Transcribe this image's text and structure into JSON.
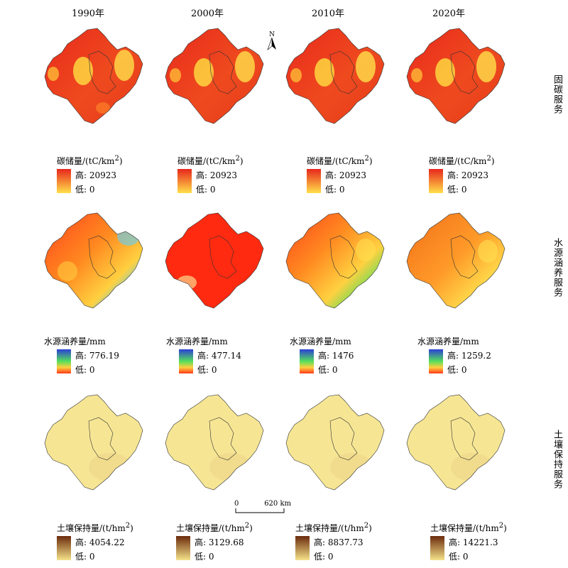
{
  "years": [
    "1990年",
    "2000年",
    "2010年",
    "2020年"
  ],
  "row_labels": [
    "固碳服务",
    "水源涵养服务",
    "土壤保持服务"
  ],
  "north_label": "N",
  "scale_bar": {
    "start": "0",
    "end": "620 km"
  },
  "colors": {
    "carbon": {
      "high": "#e8261c",
      "low": "#ffe04a"
    },
    "water": {
      "high": "#2a3fd6",
      "mid": "#55e05a",
      "low": "#ff3a1a"
    },
    "soil": {
      "high": "#6b2a0c",
      "low": "#f5e28a"
    }
  },
  "legends": {
    "carbon": [
      {
        "title_prefix": "碳储量/(tC/km",
        "title_sup": "2",
        "title_suffix": ")",
        "high": "高: 20923",
        "low": "低: 0"
      },
      {
        "title_prefix": "碳储量/(tC/km",
        "title_sup": "2",
        "title_suffix": ")",
        "high": "高: 20923",
        "low": "低: 0"
      },
      {
        "title_prefix": "碳储量/(tC/km",
        "title_sup": "2",
        "title_suffix": ")",
        "high": "高: 20923",
        "low": "低: 0"
      },
      {
        "title_prefix": "碳储量/(tC/km",
        "title_sup": "2",
        "title_suffix": ")",
        "high": "高: 20923",
        "low": "低: 0"
      }
    ],
    "water": [
      {
        "title_prefix": "水源涵养量/mm",
        "title_sup": "",
        "title_suffix": "",
        "high": "高: 776.19",
        "low": "低: 0"
      },
      {
        "title_prefix": "水源涵养量/mm",
        "title_sup": "",
        "title_suffix": "",
        "high": "高: 477.14",
        "low": "低: 0"
      },
      {
        "title_prefix": "水源涵养量/mm",
        "title_sup": "",
        "title_suffix": "",
        "high": "高: 1476",
        "low": "低: 0"
      },
      {
        "title_prefix": "水源涵养量/mm",
        "title_sup": "",
        "title_suffix": "",
        "high": "高: 1259.2",
        "low": "低: 0"
      }
    ],
    "soil": [
      {
        "title_prefix": "土壤保持量/(t/hm",
        "title_sup": "2",
        "title_suffix": ")",
        "high": "高: 4054.22",
        "low": "低: 0"
      },
      {
        "title_prefix": "土壤保持量/(t/hm",
        "title_sup": "2",
        "title_suffix": ")",
        "high": "高: 3129.68",
        "low": "低: 0"
      },
      {
        "title_prefix": "土壤保持量/(t/hm",
        "title_sup": "2",
        "title_suffix": ")",
        "high": "高: 8837.73",
        "low": "低: 0"
      },
      {
        "title_prefix": "土壤保持量/(t/hm",
        "title_sup": "2",
        "title_suffix": ")",
        "high": "高: 14221.3",
        "low": "低: 0"
      }
    ]
  }
}
